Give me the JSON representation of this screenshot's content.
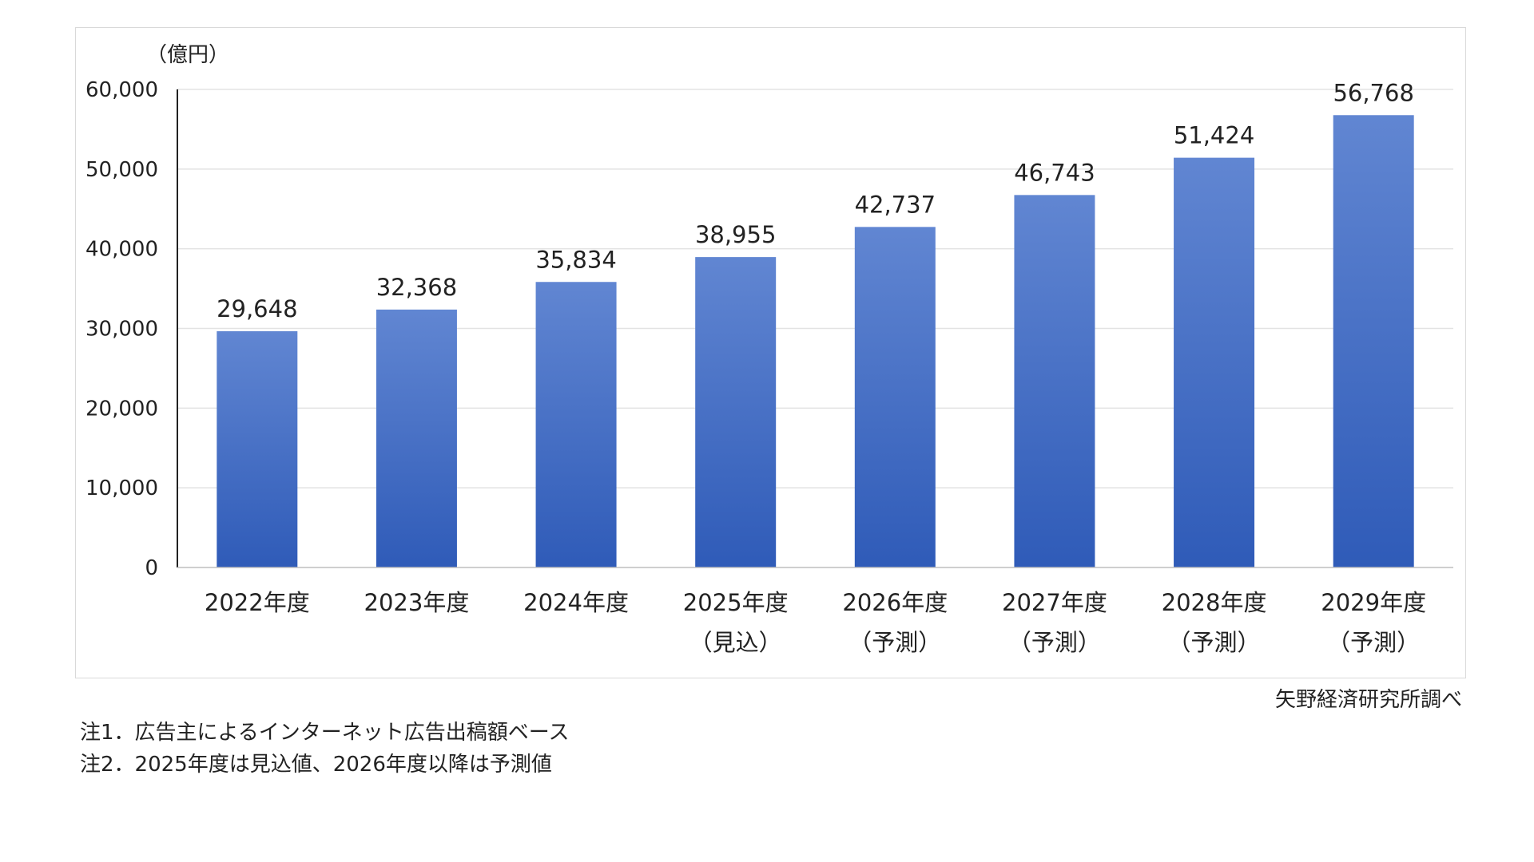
{
  "chart_data": {
    "type": "bar",
    "unit_label": "（億円）",
    "categories": [
      [
        "2022年度"
      ],
      [
        "2023年度"
      ],
      [
        "2024年度"
      ],
      [
        "2025年度",
        "（見込）"
      ],
      [
        "2026年度",
        "（予測）"
      ],
      [
        "2027年度",
        "（予測）"
      ],
      [
        "2028年度",
        "（予測）"
      ],
      [
        "2029年度",
        "（予測）"
      ]
    ],
    "values": [
      29648,
      32368,
      35834,
      38955,
      42737,
      46743,
      51424,
      56768
    ],
    "data_labels": [
      "29,648",
      "32,368",
      "35,834",
      "38,955",
      "42,737",
      "46,743",
      "51,424",
      "56,768"
    ],
    "yticks": [
      0,
      10000,
      20000,
      30000,
      40000,
      50000,
      60000
    ],
    "ytick_labels": [
      "0",
      "10,000",
      "20,000",
      "30,000",
      "40,000",
      "50,000",
      "60,000"
    ],
    "ylim": [
      0,
      60000
    ],
    "grid": true,
    "colors": {
      "bar_top": "#6186d2",
      "bar_bottom": "#2f5bb8",
      "grid": "#e3e3e3",
      "axis": "#222222"
    }
  },
  "source": "矢野経済研究所調べ",
  "notes": [
    "注1．広告主によるインターネット広告出稿額ベース",
    "注2．2025年度は見込値、2026年度以降は予測値"
  ]
}
